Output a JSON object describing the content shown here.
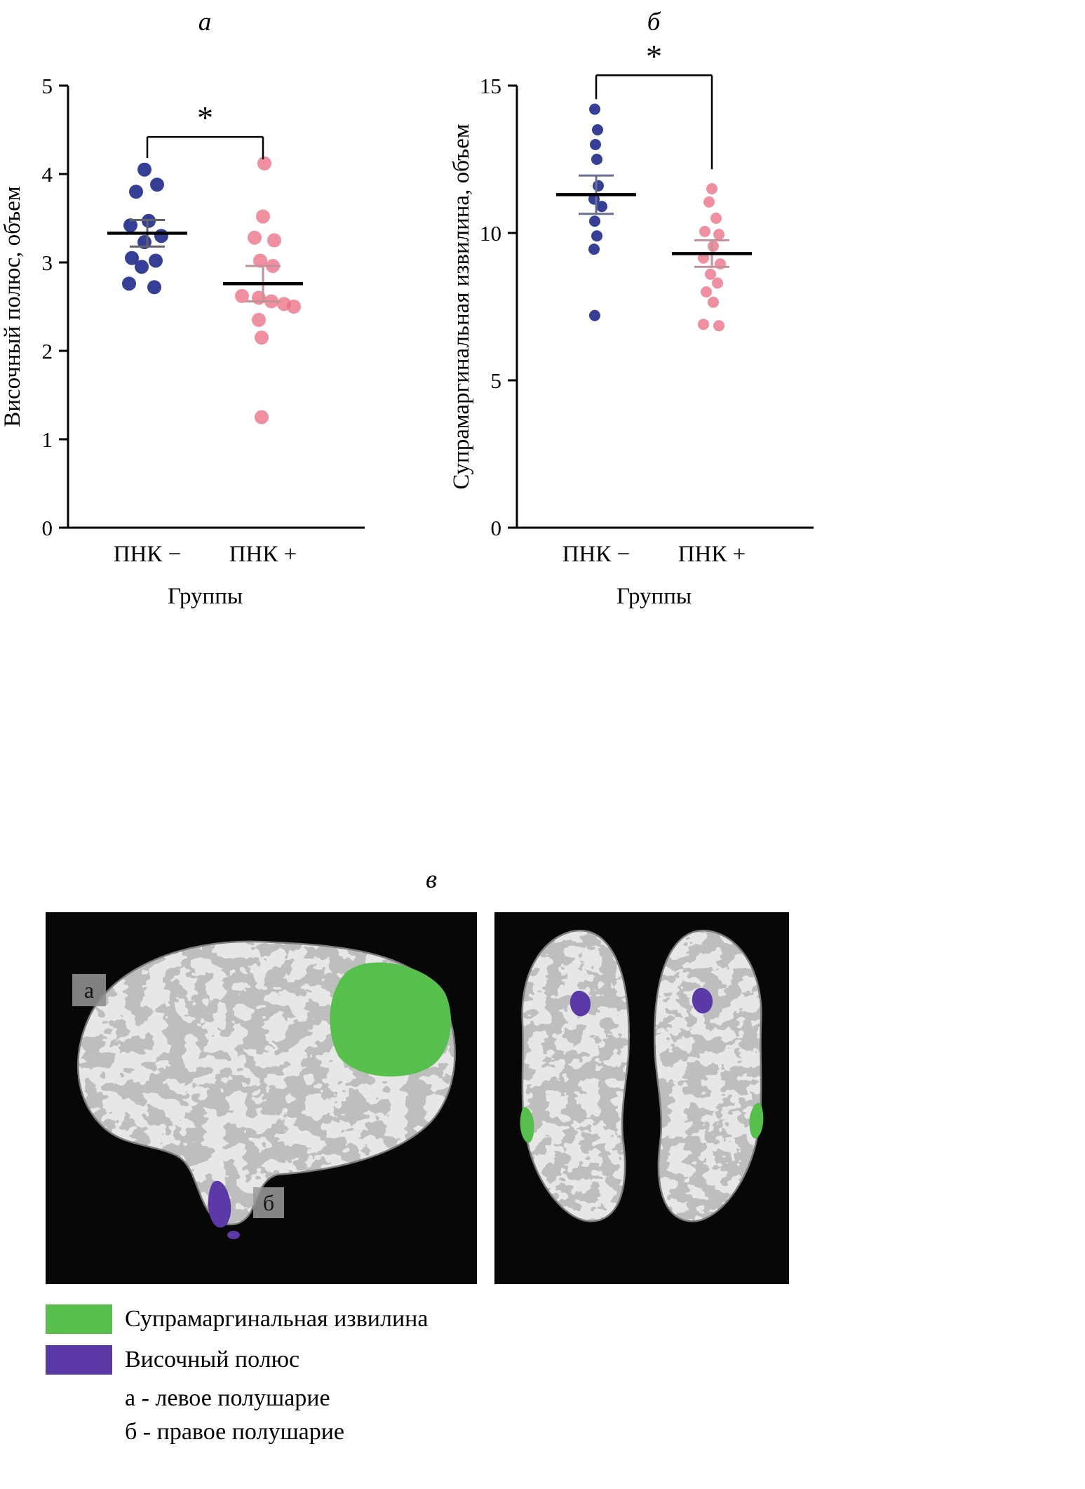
{
  "figure": {
    "panels": {
      "a": "а",
      "b": "б",
      "c": "в"
    }
  },
  "chart_data": [
    {
      "type": "scatter",
      "panel_label": "а",
      "ylabel": "Височный полюс, объем",
      "xlabel": "Группы",
      "ylim": [
        0,
        5
      ],
      "yticks": [
        0,
        1,
        2,
        3,
        4,
        5
      ],
      "categories": [
        "ПНК −",
        "ПНК +"
      ],
      "dot_radius": 10,
      "significance": {
        "label": "*",
        "y": 4.42,
        "drops": [
          30,
          32
        ]
      },
      "series": [
        {
          "name": "ПНК −",
          "color": "#2b3590",
          "opacity": 0.95,
          "error_color": "#60626e",
          "mean": 3.33,
          "sem": 0.15,
          "values": [
            4.05,
            3.88,
            3.8,
            3.47,
            3.42,
            3.3,
            3.23,
            3.05,
            3.02,
            2.95,
            2.76,
            2.72
          ],
          "jitter": [
            -4,
            14,
            -16,
            2,
            -24,
            20,
            -4,
            -22,
            12,
            -8,
            -26,
            10
          ]
        },
        {
          "name": "ПНК +",
          "color": "#ec6f85",
          "opacity": 0.78,
          "error_color": "#c4919b",
          "mean": 2.76,
          "sem": 0.2,
          "values": [
            4.12,
            3.52,
            3.28,
            3.25,
            3.02,
            2.96,
            2.62,
            2.6,
            2.56,
            2.53,
            2.5,
            2.35,
            2.15,
            1.25
          ],
          "jitter": [
            2,
            0,
            -12,
            16,
            -4,
            14,
            -30,
            -6,
            12,
            30,
            44,
            -6,
            -2,
            -2
          ]
        }
      ]
    },
    {
      "type": "scatter",
      "panel_label": "б",
      "ylabel": "Супрамаргинальная извилина, объем",
      "xlabel": "Группы",
      "ylim": [
        0,
        15
      ],
      "yticks": [
        0,
        5,
        10,
        15
      ],
      "categories": [
        "ПНК −",
        "ПНК +"
      ],
      "dot_radius": 8,
      "significance": {
        "label": "*",
        "y": 15.35,
        "drops": [
          34,
          134
        ]
      },
      "series": [
        {
          "name": "ПНК −",
          "color": "#2b3590",
          "opacity": 0.95,
          "error_color": "#6b6f94",
          "mean": 11.3,
          "sem": 0.65,
          "values": [
            14.2,
            13.5,
            13.0,
            12.5,
            11.6,
            11.15,
            10.9,
            10.4,
            9.9,
            9.45,
            7.2
          ],
          "jitter": [
            -2,
            2,
            -1,
            1,
            3,
            -3,
            8,
            -2,
            1,
            -3,
            -2
          ]
        },
        {
          "name": "ПНК +",
          "color": "#ec6f85",
          "opacity": 0.78,
          "error_color": "#c4919b",
          "mean": 9.3,
          "sem": 0.45,
          "values": [
            11.5,
            11.05,
            10.5,
            10.05,
            9.95,
            9.55,
            9.15,
            8.95,
            8.6,
            8.3,
            8.0,
            7.65,
            6.9,
            6.85
          ],
          "jitter": [
            0,
            -4,
            6,
            -10,
            10,
            2,
            -12,
            12,
            -2,
            8,
            -8,
            2,
            -12,
            10
          ]
        }
      ]
    }
  ],
  "brain_panel": {
    "label": "в",
    "annotations": {
      "a": "а",
      "b": "б"
    },
    "regions": {
      "supramarginal_color": "#57bf4c",
      "temporal_color": "#5b3aa8"
    }
  },
  "legend": {
    "items": [
      {
        "label": "Супрамаргинальная извилина",
        "color": "#57bf4c"
      },
      {
        "label": "Височный полюс",
        "color": "#5b3aa8"
      }
    ],
    "notes": [
      "а - левое полушарие",
      "б - правое полушарие"
    ]
  }
}
